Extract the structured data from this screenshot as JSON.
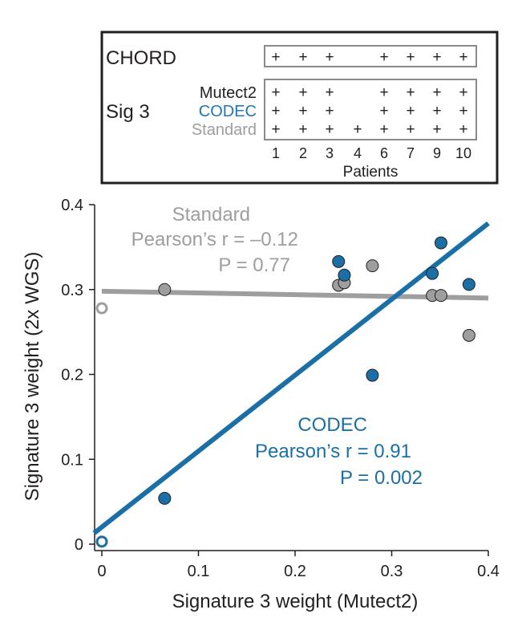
{
  "legend_box": {
    "chord_label": "CHORD",
    "sig_label": "Sig 3",
    "rows": [
      {
        "name": "Mutect2",
        "color": "#231f20"
      },
      {
        "name": "CODEC",
        "color": "#1f77b4"
      },
      {
        "name": "Standard",
        "color": "#9e9e9e"
      }
    ],
    "patients": [
      "1",
      "2",
      "3",
      "4",
      "6",
      "7",
      "9",
      "10"
    ],
    "patients_label": "Patients",
    "mark": "+",
    "chord_marks": [
      true,
      true,
      true,
      false,
      true,
      true,
      true,
      true
    ],
    "sig3_marks": [
      [
        true,
        true,
        true,
        false,
        true,
        true,
        true,
        true
      ],
      [
        true,
        true,
        true,
        false,
        true,
        true,
        true,
        true
      ],
      [
        true,
        true,
        true,
        true,
        true,
        true,
        true,
        true
      ]
    ]
  },
  "annotations": {
    "standard": {
      "title": "Standard",
      "stat": "Pearson’s r = –0.12",
      "p": "P = 0.77",
      "color": "#9e9e9e"
    },
    "codec": {
      "title": "CODEC",
      "stat": "Pearson’s r = 0.91",
      "p": "P = 0.002",
      "color": "#1a6fa6"
    }
  },
  "chart_data": {
    "type": "scatter",
    "xlabel": "Signature 3 weight (Mutect2)",
    "ylabel": "Signature 3 weight (2x WGS)",
    "xlim": [
      0,
      0.4
    ],
    "ylim": [
      0,
      0.4
    ],
    "xticks": [
      "0",
      "0.1",
      "0.2",
      "0.3",
      "0.4"
    ],
    "yticks": [
      "0",
      "0.1",
      "0.2",
      "0.3",
      "0.4"
    ],
    "xtick_values": [
      0,
      0.1,
      0.2,
      0.3,
      0.4
    ],
    "ytick_values": [
      0,
      0.1,
      0.2,
      0.3,
      0.4
    ],
    "grid": false,
    "series": [
      {
        "name": "Standard",
        "color": "#9e9e9e",
        "points": [
          {
            "x": 0.0,
            "y": 0.278,
            "hollow": true
          },
          {
            "x": 0.065,
            "y": 0.3
          },
          {
            "x": 0.245,
            "y": 0.305
          },
          {
            "x": 0.251,
            "y": 0.308
          },
          {
            "x": 0.28,
            "y": 0.328
          },
          {
            "x": 0.342,
            "y": 0.293
          },
          {
            "x": 0.351,
            "y": 0.293
          },
          {
            "x": 0.38,
            "y": 0.246
          }
        ],
        "fit": {
          "x": [
            0,
            0.4
          ],
          "y": [
            0.298,
            0.29
          ]
        }
      },
      {
        "name": "CODEC",
        "color": "#1a6fa6",
        "points": [
          {
            "x": 0.0,
            "y": 0.003,
            "hollow": true
          },
          {
            "x": 0.065,
            "y": 0.054
          },
          {
            "x": 0.245,
            "y": 0.333
          },
          {
            "x": 0.251,
            "y": 0.317
          },
          {
            "x": 0.28,
            "y": 0.199
          },
          {
            "x": 0.342,
            "y": 0.319
          },
          {
            "x": 0.351,
            "y": 0.355
          },
          {
            "x": 0.38,
            "y": 0.306
          }
        ],
        "fit": {
          "x": [
            -0.008,
            0.4
          ],
          "y": [
            0.013,
            0.378
          ]
        }
      }
    ]
  }
}
